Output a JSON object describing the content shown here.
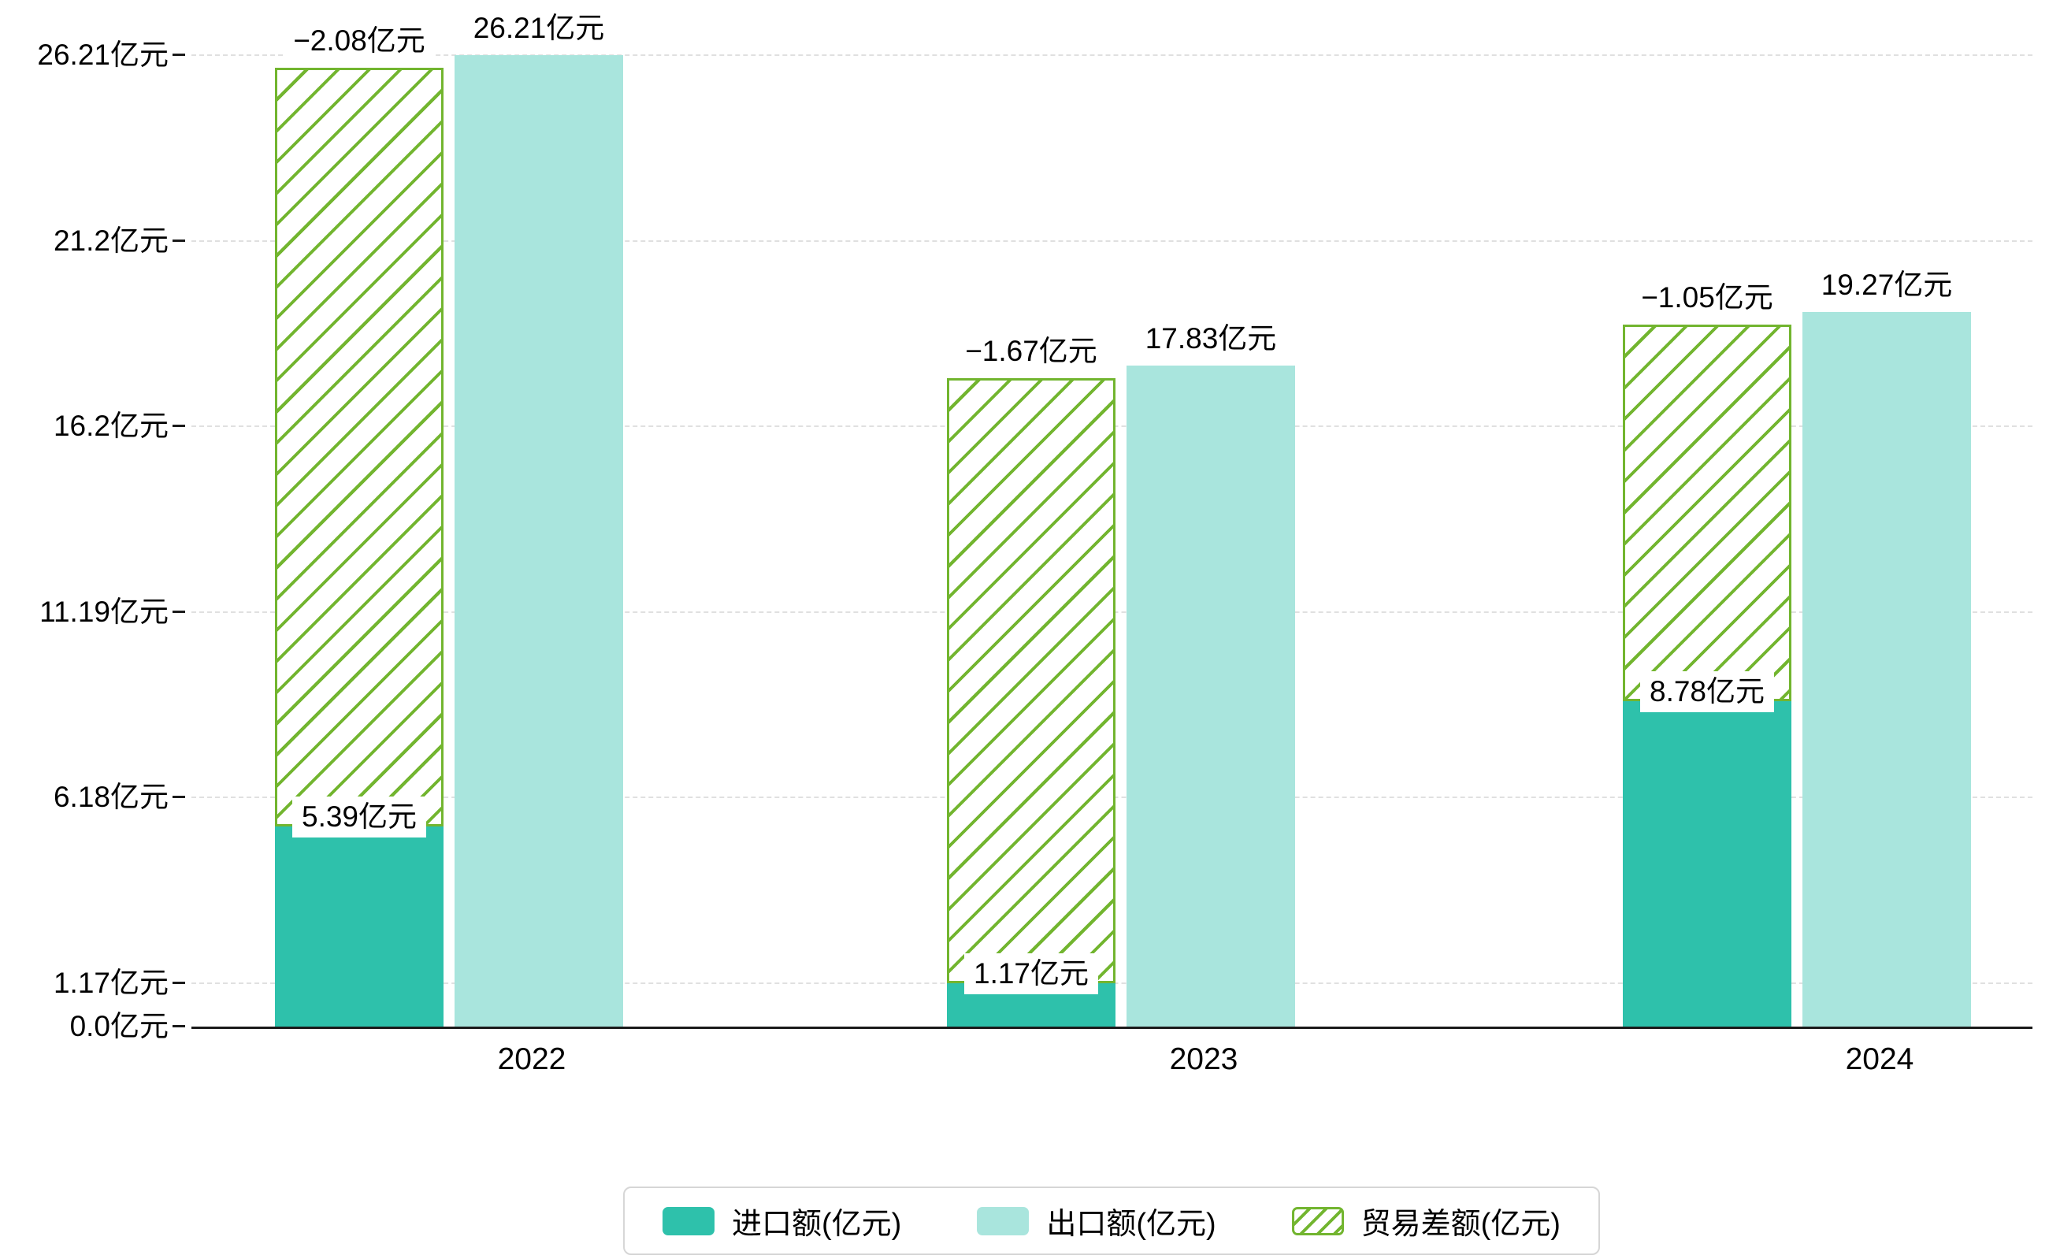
{
  "chart_data": {
    "type": "bar",
    "categories": [
      "2022",
      "2023",
      "2024"
    ],
    "series": [
      {
        "key": "imports",
        "name": "进口额(亿元)",
        "values": [
          5.39,
          1.17,
          8.78
        ],
        "data_labels": [
          "5.39亿元",
          "1.17亿元",
          "8.78亿元"
        ],
        "color": "#2ec1ab",
        "style": "solid"
      },
      {
        "key": "exports",
        "name": "出口额(亿元)",
        "values": [
          26.21,
          17.83,
          19.27
        ],
        "data_labels": [
          "26.21亿元",
          "17.83亿元",
          "19.27亿元"
        ],
        "color": "#a9e5dd",
        "style": "solid"
      },
      {
        "key": "trade-balance",
        "name": "贸易差额(亿元)",
        "values": [
          -2.08,
          -1.67,
          -1.05
        ],
        "data_labels": [
          "−2.08亿元",
          "−1.67亿元",
          "−1.05亿元"
        ],
        "color": "#72b52f",
        "style": "hatched"
      }
    ],
    "y_axis": {
      "unit": "亿元",
      "max": 26.21,
      "ticks": [
        {
          "value": 0.0,
          "label": "0.0亿元"
        },
        {
          "value": 1.17,
          "label": "1.17亿元"
        },
        {
          "value": 6.18,
          "label": "6.18亿元"
        },
        {
          "value": 11.19,
          "label": "11.19亿元"
        },
        {
          "value": 16.2,
          "label": "16.2亿元"
        },
        {
          "value": 21.2,
          "label": "21.2亿元"
        },
        {
          "value": 26.21,
          "label": "26.21亿元"
        }
      ]
    },
    "grid": "dashed-horizontal",
    "legend_position": "bottom-center",
    "colors": {
      "import_bar": "#2ec1ab",
      "export_bar": "#a9e5dd",
      "balance_hatch": "#72b52f",
      "axis": "#1a1a1a",
      "gridline": "#e0e0e0",
      "label_text": "#000000",
      "background": "#ffffff"
    }
  }
}
